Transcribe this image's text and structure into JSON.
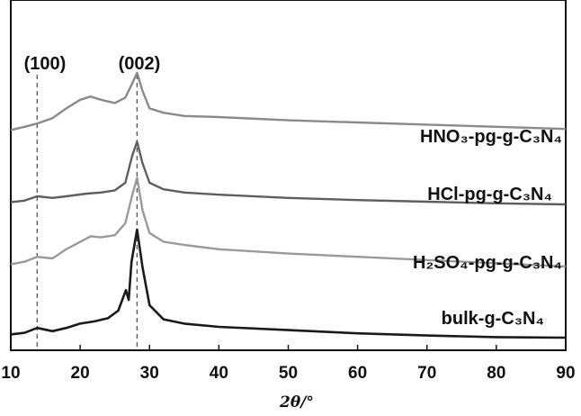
{
  "chart_data": {
    "type": "line",
    "title": "",
    "xlabel": "2θ/°",
    "ylabel": "",
    "xlim": [
      10,
      90
    ],
    "xticks": [
      "10",
      "20",
      "30",
      "40",
      "50",
      "60",
      "70",
      "80",
      "90"
    ],
    "grid": false,
    "reference_lines": [
      {
        "x": 13.8,
        "label": "(100)"
      },
      {
        "x": 28.2,
        "label": "(002)"
      }
    ],
    "series": [
      {
        "name": "HNO₃-pg-g-C₃N₄",
        "color": "#8a8a8a",
        "x": [
          10,
          12,
          13.8,
          16,
          18,
          20,
          21.5,
          23,
          25,
          26.5,
          27.5,
          28.2,
          29,
          30,
          32,
          35,
          40,
          50,
          60,
          70,
          80,
          90
        ],
        "y": [
          0.3,
          0.6,
          0.9,
          1.4,
          2.3,
          3.1,
          3.4,
          3.1,
          2.8,
          3.3,
          4.6,
          5.6,
          3.9,
          2.3,
          1.9,
          1.6,
          1.5,
          1.2,
          1.0,
          0.8,
          0.6,
          0.4
        ]
      },
      {
        "name": "HCl-pg-g-C₃N₄",
        "color": "#5e5e5e",
        "x": [
          10,
          12,
          13.8,
          16,
          18,
          21,
          23,
          25,
          26.5,
          27.5,
          28.2,
          29,
          30,
          32,
          35,
          40,
          50,
          60,
          70,
          80,
          90
        ],
        "y": [
          0.2,
          0.35,
          0.75,
          0.6,
          0.75,
          1.0,
          1.1,
          1.3,
          2.0,
          4.5,
          5.8,
          3.8,
          2.0,
          1.4,
          1.1,
          0.9,
          0.6,
          0.4,
          0.25,
          0.1,
          0.0
        ]
      },
      {
        "name": "H₂SO₄-pg-g-C₃N₄",
        "color": "#9a9a9a",
        "x": [
          10,
          12,
          13.8,
          16,
          18,
          21.5,
          23,
          25,
          26.5,
          27.5,
          28.2,
          29,
          30,
          32,
          35,
          40,
          50,
          60,
          70,
          80,
          90
        ],
        "y": [
          0.2,
          0.45,
          0.9,
          0.75,
          1.6,
          2.8,
          2.7,
          2.9,
          4.0,
          6.6,
          8.2,
          5.2,
          3.1,
          2.3,
          2.0,
          1.6,
          1.2,
          0.9,
          0.6,
          0.3,
          0.0
        ]
      },
      {
        "name": "bulk-g-C₃N₄",
        "color": "#1a1a1a",
        "x": [
          10,
          12,
          13.8,
          16,
          18,
          20,
          22,
          24,
          25.5,
          26.6,
          27.0,
          27.4,
          28.2,
          29,
          30,
          32,
          35,
          40,
          50,
          60,
          70,
          80,
          90
        ],
        "y": [
          0.3,
          0.45,
          0.9,
          0.6,
          0.9,
          1.3,
          1.5,
          1.8,
          2.5,
          4.4,
          3.5,
          7.0,
          10.0,
          6.5,
          3.0,
          1.7,
          1.3,
          1.0,
          0.7,
          0.4,
          0.2,
          0.05,
          0.0
        ]
      }
    ]
  }
}
